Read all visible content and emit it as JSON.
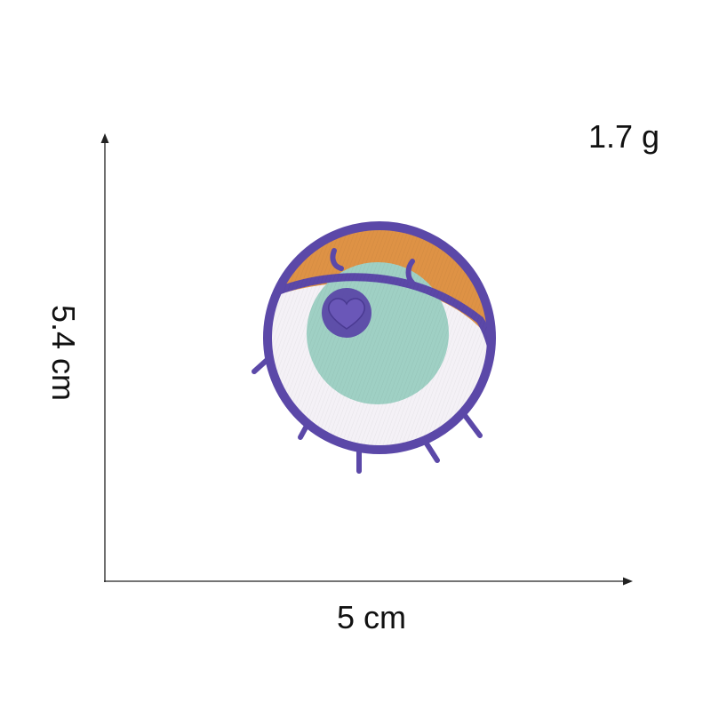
{
  "weight": "1.7 g",
  "width": "5 cm",
  "height": "5.4 cm",
  "patch": {
    "subject": "embroidered eye patch",
    "icon": "eye-patch-icon",
    "colors": {
      "outline": "#5b48a8",
      "lid": "#de9245",
      "iris": "#9fd0c4",
      "sclera": "#f4f1f6",
      "heart": "#5b48a8",
      "backing": "#ece8f0"
    }
  }
}
